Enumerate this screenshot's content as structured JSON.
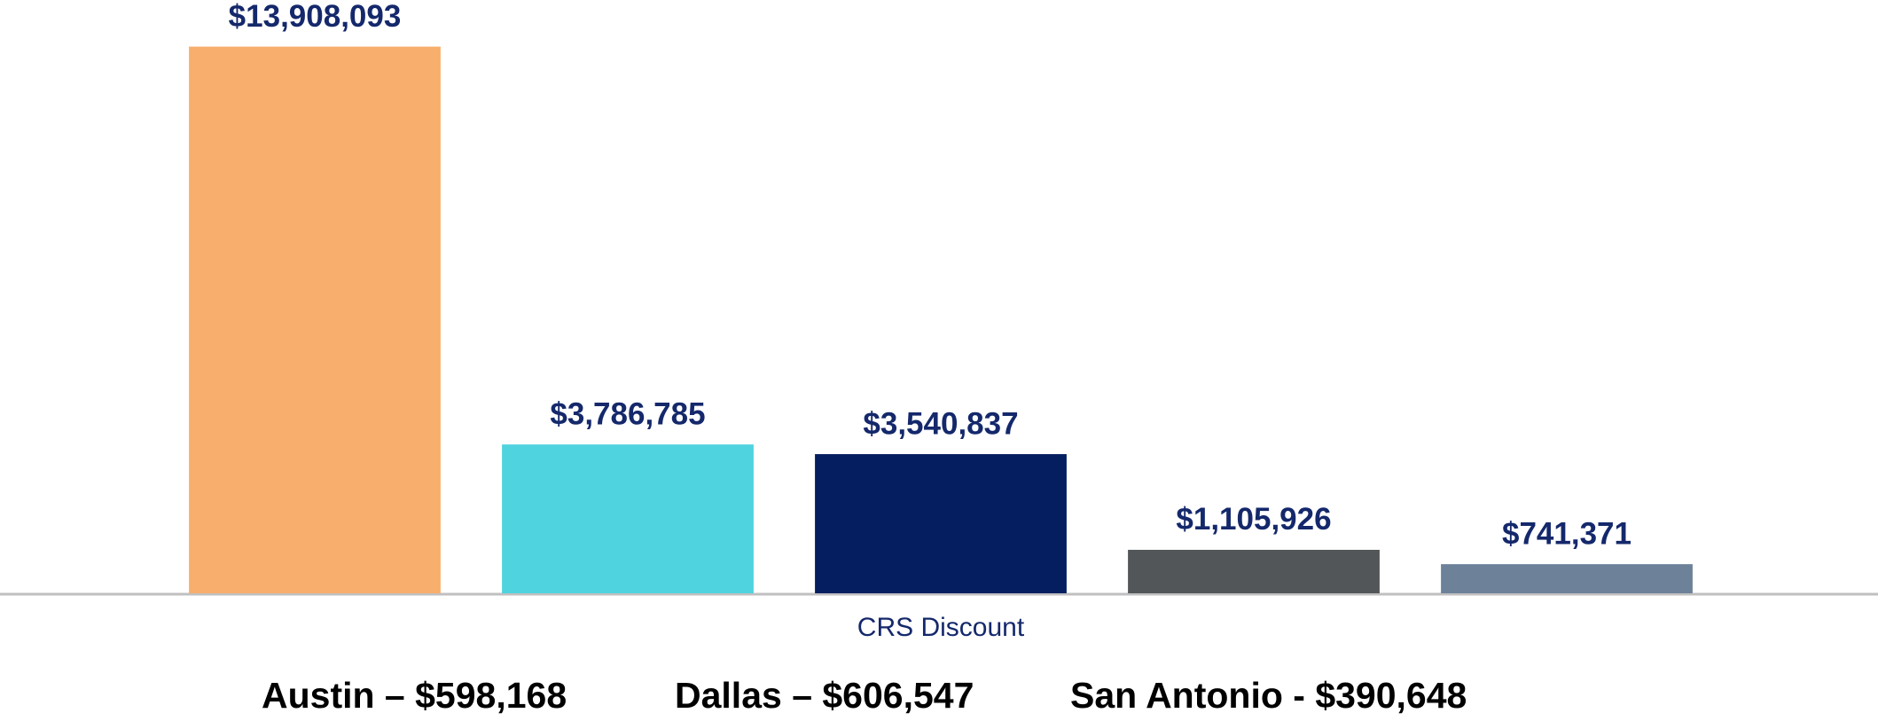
{
  "chart_data": {
    "type": "bar",
    "categories": [
      null,
      null,
      null,
      null,
      null
    ],
    "values": [
      13908093,
      3786785,
      3540837,
      1105926,
      741371
    ],
    "value_labels": [
      "$13,908,093",
      "$3,786,785",
      "$3,540,837",
      "$1,105,926",
      "$741,371"
    ],
    "colors": [
      "#f8ae6c",
      "#4fd3df",
      "#041e60",
      "#525659",
      "#6d8299"
    ],
    "x_label": "CRS Discount",
    "ylim": [
      0,
      14000000
    ],
    "annotations": [
      "Austin – $598,168",
      "Dallas – $606,547",
      "San Antonio - $390,648"
    ]
  }
}
